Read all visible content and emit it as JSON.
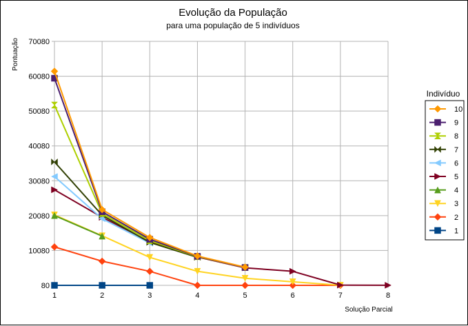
{
  "chart_data": {
    "type": "line",
    "title": "Evolução da População",
    "subtitle": "para uma população de 5 indivíduos",
    "xlabel": "Solução Parcial",
    "ylabel": "Pontuação",
    "x": [
      1,
      2,
      3,
      4,
      5,
      6,
      7,
      8
    ],
    "xlim": [
      1,
      8
    ],
    "ylim": [
      80,
      70080
    ],
    "yticks": [
      80,
      10080,
      20080,
      30080,
      40080,
      50080,
      60080,
      70080
    ],
    "grid": true,
    "legend_title": "Indivíduo",
    "legend_position": "right",
    "series": [
      {
        "name": "10",
        "color": "#ff9900",
        "marker": "diamond",
        "x": [
          1,
          2,
          3,
          4,
          5
        ],
        "values": [
          61500,
          21800,
          13800,
          8500,
          5300
        ]
      },
      {
        "name": "9",
        "color": "#4b1f6f",
        "marker": "square",
        "x": [
          1,
          2,
          3,
          4,
          5
        ],
        "values": [
          59500,
          21200,
          13300,
          8400,
          5200
        ]
      },
      {
        "name": "8",
        "color": "#aecf00",
        "marker": "hourglass",
        "x": [
          1,
          2,
          3,
          4,
          5
        ],
        "values": [
          51800,
          20700,
          12900,
          8300,
          5200
        ]
      },
      {
        "name": "7",
        "color": "#314004",
        "marker": "bowtie",
        "x": [
          1,
          2,
          3,
          4
        ],
        "values": [
          35500,
          20200,
          12400,
          8100
        ]
      },
      {
        "name": "6",
        "color": "#83caff",
        "marker": "triangle-left",
        "x": [
          1,
          2,
          3
        ],
        "values": [
          31300,
          19200,
          12200
        ]
      },
      {
        "name": "5",
        "color": "#7e0021",
        "marker": "triangle-right",
        "x": [
          1,
          2,
          3,
          4,
          5,
          6,
          7,
          8
        ],
        "values": [
          27500,
          19600,
          12500,
          8200,
          5100,
          4100,
          150,
          100
        ]
      },
      {
        "name": "4",
        "color": "#579d1c",
        "marker": "triangle-up",
        "x": [
          1,
          2
        ],
        "values": [
          20100,
          14200
        ]
      },
      {
        "name": "3",
        "color": "#ffd320",
        "marker": "triangle-down",
        "x": [
          1,
          2,
          3,
          4,
          5,
          6,
          7
        ],
        "values": [
          20300,
          14300,
          8100,
          4100,
          2100,
          1100,
          100
        ]
      },
      {
        "name": "2",
        "color": "#ff420e",
        "marker": "diamond",
        "x": [
          1,
          2,
          3,
          4,
          5,
          6,
          7
        ],
        "values": [
          11100,
          7000,
          4100,
          80,
          80,
          80,
          80
        ]
      },
      {
        "name": "1",
        "color": "#004586",
        "marker": "square",
        "x": [
          1,
          2,
          3
        ],
        "values": [
          80,
          80,
          80
        ]
      }
    ]
  }
}
